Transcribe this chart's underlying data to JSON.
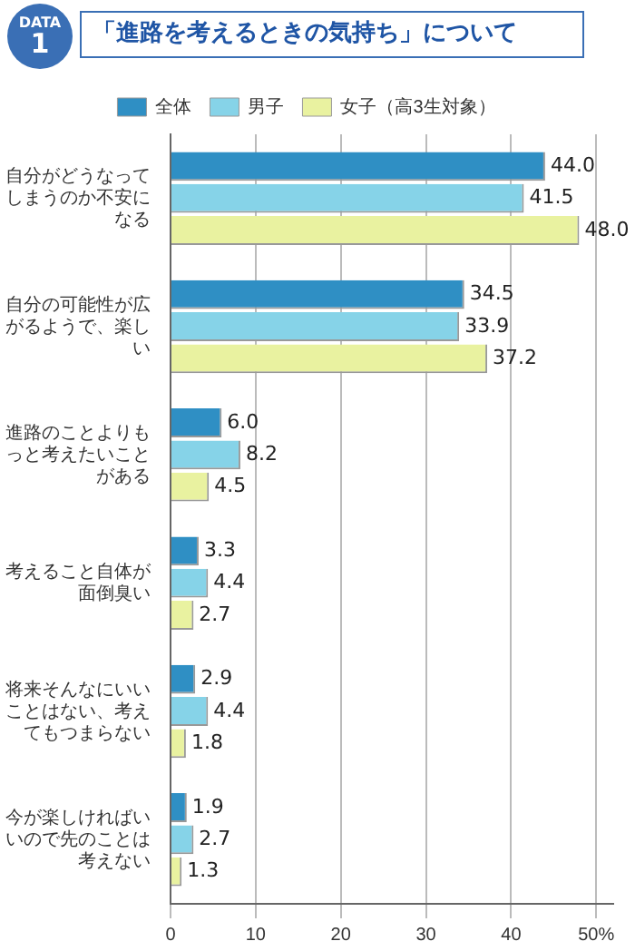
{
  "chart_data": {
    "type": "bar",
    "orientation": "horizontal",
    "title": "「進路を考えるときの気持ち」について",
    "annotations": [
      "DATA\n1"
    ],
    "categories": [
      "自分がどうなってしまうのか不安になる",
      "自分の可能性が広がるようで、楽しい",
      "進路のことよりもっと考えたいことがある",
      "考えること自体が面倒臭い",
      "将来そんなにいいことはない、考えてもつまらない",
      "今が楽しければいいので先のことは考えない"
    ],
    "series": [
      {
        "name": "全体",
        "color": "#2f8fc4",
        "values": [
          44.0,
          34.5,
          6.0,
          3.3,
          2.9,
          1.9
        ],
        "value_labels": [
          "44.0",
          "34.5",
          "6.0",
          "3.3",
          "2.9",
          "1.9"
        ]
      },
      {
        "name": "男子",
        "color": "#86d3e8",
        "values": [
          41.5,
          33.9,
          8.2,
          4.4,
          4.4,
          2.7
        ],
        "value_labels": [
          "41.5",
          "33.9",
          "8.2",
          "4.4",
          "4.4",
          "2.7"
        ]
      },
      {
        "name": "女子（高3生対象）",
        "color": "#e9f2a0",
        "values": [
          48.0,
          37.2,
          4.5,
          2.7,
          1.8,
          1.3
        ],
        "value_labels": [
          "48.0",
          "37.2",
          "4.5",
          "2.7",
          "1.8",
          "1.3"
        ]
      }
    ],
    "xlim": [
      0,
      52
    ],
    "xticks": [
      0,
      10,
      20,
      30,
      40,
      {
        "value": 50,
        "label": "50%"
      }
    ],
    "grid": "x",
    "legend": "top"
  }
}
